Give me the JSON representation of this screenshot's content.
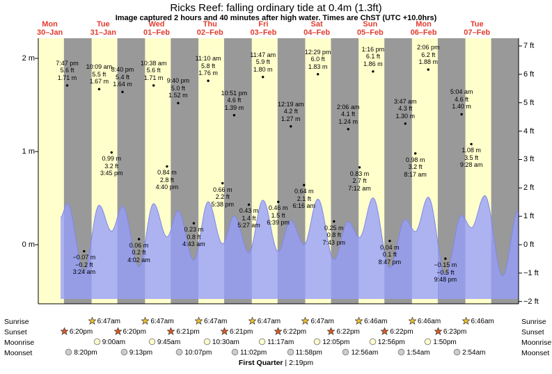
{
  "title": "Ricks Reef: falling ordinary tide at 0.4m (1.3ft)",
  "subtitle": "Image captured 2 hours and 40 minutes after high water. Times are ChST (UTC +10.0hrs)",
  "colors": {
    "plot_bg": "#ffffcc",
    "night_band": "#999999",
    "tide_fill": "#959efa",
    "tide_stroke": "#7f88e8",
    "day_label": "#e23b2e",
    "sunrise_star": "#f0c428",
    "sunset_star": "#e05a20",
    "moonrise_fill": "#ffffcc",
    "moonset_fill": "#cccccc"
  },
  "chart_data": {
    "type": "area",
    "title": "Ricks Reef: falling ordinary tide at 0.4m (1.3ft)",
    "xlabel": "day",
    "ylabel_left": "height (m)",
    "ylabel_right": "height (ft)",
    "x_domain_hours": [
      6.8,
      222.7
    ],
    "y_domain_m": [
      -0.63,
      2.22
    ],
    "grid": false,
    "days": [
      {
        "dow": "Mon",
        "date": "30–Jan"
      },
      {
        "dow": "Tue",
        "date": "31–Jan"
      },
      {
        "dow": "Wed",
        "date": "01–Feb"
      },
      {
        "dow": "Thu",
        "date": "02–Feb"
      },
      {
        "dow": "Fri",
        "date": "03–Feb"
      },
      {
        "dow": "Sat",
        "date": "04–Feb"
      },
      {
        "dow": "Sun",
        "date": "05–Feb"
      },
      {
        "dow": "Mon",
        "date": "06–Feb"
      },
      {
        "dow": "Tue",
        "date": "07–Feb"
      }
    ],
    "y_axis_left": [
      {
        "label": "2 m",
        "value": 2
      },
      {
        "label": "1 m",
        "value": 1
      },
      {
        "label": "0 m",
        "value": 0
      }
    ],
    "y_axis_right": [
      {
        "label": "7 ft",
        "value": 7
      },
      {
        "label": "6 ft",
        "value": 6
      },
      {
        "label": "5 ft",
        "value": 5
      },
      {
        "label": "4 ft",
        "value": 4
      },
      {
        "label": "3 ft",
        "value": 3
      },
      {
        "label": "2 ft",
        "value": 2
      },
      {
        "label": "1 ft",
        "value": 1
      },
      {
        "label": "0 ft",
        "value": 0
      },
      {
        "label": "−1 ft",
        "value": -1
      },
      {
        "label": "−2 ft",
        "value": -2
      }
    ],
    "night_bands": [
      [
        18.33,
        30.78
      ],
      [
        42.33,
        54.78
      ],
      [
        66.35,
        78.78
      ],
      [
        90.35,
        102.78
      ],
      [
        114.37,
        126.78
      ],
      [
        138.37,
        150.77
      ],
      [
        162.37,
        174.77
      ],
      [
        186.38,
        198.77
      ],
      [
        210.38,
        222.7
      ]
    ],
    "curve": [
      [
        16.8,
        1.35
      ],
      [
        19.783,
        1.71
      ],
      [
        27.4,
        -0.07
      ],
      [
        34.15,
        1.67
      ],
      [
        39.75,
        0.99
      ],
      [
        44.667,
        1.64
      ],
      [
        52.033,
        0.06
      ],
      [
        58.633,
        1.71
      ],
      [
        64.667,
        0.84
      ],
      [
        69.667,
        1.52
      ],
      [
        76.717,
        0.23
      ],
      [
        83.167,
        1.76
      ],
      [
        89.633,
        0.66
      ],
      [
        94.85,
        1.39
      ],
      [
        101.45,
        0.43
      ],
      [
        107.783,
        1.8
      ],
      [
        114.65,
        0.46
      ],
      [
        120.317,
        1.27
      ],
      [
        126.267,
        0.64
      ],
      [
        132.483,
        1.83
      ],
      [
        139.717,
        0.25
      ],
      [
        146.1,
        1.24
      ],
      [
        151.2,
        0.83
      ],
      [
        157.267,
        1.86
      ],
      [
        164.783,
        0.04
      ],
      [
        171.783,
        1.3
      ],
      [
        176.283,
        0.98
      ],
      [
        182.1,
        1.88
      ],
      [
        189.8,
        -0.15
      ],
      [
        197.067,
        1.4
      ],
      [
        201.467,
        1.08
      ],
      [
        207.5,
        1.92
      ],
      [
        215.5,
        -0.18
      ],
      [
        222.7,
        1.55
      ]
    ],
    "tide_events": [
      {
        "type": "high",
        "time": "7:47 pm",
        "ft": "5.6 ft",
        "m": "1.71 m",
        "hour": 19.783,
        "height_m": 1.71
      },
      {
        "type": "low",
        "time": "3:24 am",
        "ft": "−0.2 ft",
        "m": "−0.07 m",
        "hour": 27.4,
        "height_m": -0.07
      },
      {
        "type": "high",
        "time": "10:09 am",
        "ft": "5.5 ft",
        "m": "1.67 m",
        "hour": 34.15,
        "height_m": 1.67
      },
      {
        "type": "low",
        "time": "3:45 pm",
        "ft": "3.2 ft",
        "m": "0.99 m",
        "hour": 39.75,
        "height_m": 0.99
      },
      {
        "type": "high",
        "time": "8:40 pm",
        "ft": "5.4 ft",
        "m": "1.64 m",
        "hour": 44.667,
        "height_m": 1.64
      },
      {
        "type": "low",
        "time": "4:02 am",
        "ft": "0.2 ft",
        "m": "0.06 m",
        "hour": 52.033,
        "height_m": 0.06
      },
      {
        "type": "high",
        "time": "10:38 am",
        "ft": "5.6 ft",
        "m": "1.71 m",
        "hour": 58.633,
        "height_m": 1.71
      },
      {
        "type": "low",
        "time": "4:40 pm",
        "ft": "2.8 ft",
        "m": "0.84 m",
        "hour": 64.667,
        "height_m": 0.84
      },
      {
        "type": "high",
        "time": "9:40 pm",
        "ft": "5.0 ft",
        "m": "1.52 m",
        "hour": 69.667,
        "height_m": 1.52
      },
      {
        "type": "low",
        "time": "4:43 am",
        "ft": "0.8 ft",
        "m": "0.23 m",
        "hour": 76.717,
        "height_m": 0.23
      },
      {
        "type": "high",
        "time": "11:10 am",
        "ft": "5.8 ft",
        "m": "1.76 m",
        "hour": 83.167,
        "height_m": 1.76
      },
      {
        "type": "low",
        "time": "5:38 pm",
        "ft": "2.2 ft",
        "m": "0.66 m",
        "hour": 89.633,
        "height_m": 0.66
      },
      {
        "type": "high",
        "time": "10:51 pm",
        "ft": "4.6 ft",
        "m": "1.39 m",
        "hour": 94.85,
        "height_m": 1.39
      },
      {
        "type": "low",
        "time": "5:27 am",
        "ft": "1.4 ft",
        "m": "0.43 m",
        "hour": 101.45,
        "height_m": 0.43
      },
      {
        "type": "high",
        "time": "11:47 am",
        "ft": "5.9 ft",
        "m": "1.80 m",
        "hour": 107.783,
        "height_m": 1.8
      },
      {
        "type": "low",
        "time": "6:39 pm",
        "ft": "1.5 ft",
        "m": "0.46 m",
        "hour": 114.65,
        "height_m": 0.46
      },
      {
        "type": "high",
        "time": "12:19 am",
        "ft": "4.2 ft",
        "m": "1.27 m",
        "hour": 120.317,
        "height_m": 1.27
      },
      {
        "type": "low",
        "time": "6:16 am",
        "ft": "2.1 ft",
        "m": "0.64 m",
        "hour": 126.267,
        "height_m": 0.64
      },
      {
        "type": "high",
        "time": "12:29 pm",
        "ft": "6.0 ft",
        "m": "1.83 m",
        "hour": 132.483,
        "height_m": 1.83
      },
      {
        "type": "low",
        "time": "7:43 pm",
        "ft": "0.8 ft",
        "m": "0.25 m",
        "hour": 139.717,
        "height_m": 0.25
      },
      {
        "type": "high",
        "time": "2:06 am",
        "ft": "4.1 ft",
        "m": "1.24 m",
        "hour": 146.1,
        "height_m": 1.24
      },
      {
        "type": "low",
        "time": "7:12 am",
        "ft": "2.7 ft",
        "m": "0.83 m",
        "hour": 151.2,
        "height_m": 0.83
      },
      {
        "type": "high",
        "time": "1:16 pm",
        "ft": "6.1 ft",
        "m": "1.86 m",
        "hour": 157.267,
        "height_m": 1.86
      },
      {
        "type": "low",
        "time": "8:47 pm",
        "ft": "0.1 ft",
        "m": "0.04 m",
        "hour": 164.783,
        "height_m": 0.04
      },
      {
        "type": "high",
        "time": "3:47 am",
        "ft": "4.3 ft",
        "m": "1.30 m",
        "hour": 171.783,
        "height_m": 1.3
      },
      {
        "type": "low",
        "time": "8:17 am",
        "ft": "3.2 ft",
        "m": "0.98 m",
        "hour": 176.283,
        "height_m": 0.98
      },
      {
        "type": "high",
        "time": "2:06 pm",
        "ft": "6.2 ft",
        "m": "1.88 m",
        "hour": 182.1,
        "height_m": 1.88
      },
      {
        "type": "low",
        "time": "9:48 pm",
        "ft": "−0.5 ft",
        "m": "−0.15 m",
        "hour": 189.8,
        "height_m": -0.15
      },
      {
        "type": "high",
        "time": "5:04 am",
        "ft": "4.6 ft",
        "m": "1.40 m",
        "hour": 197.067,
        "height_m": 1.4
      },
      {
        "type": "low",
        "time": "9:28 am",
        "ft": "3.5 ft",
        "m": "1.08 m",
        "hour": 201.467,
        "height_m": 1.08
      }
    ]
  },
  "astro": {
    "rows": [
      {
        "label": "Sunrise",
        "icon": "sunrise-star",
        "events": [
          {
            "hour": 30.78,
            "time": "6:47am"
          },
          {
            "hour": 54.78,
            "time": "6:47am"
          },
          {
            "hour": 78.78,
            "time": "6:47am"
          },
          {
            "hour": 102.78,
            "time": "6:47am"
          },
          {
            "hour": 126.78,
            "time": "6:47am"
          },
          {
            "hour": 150.77,
            "time": "6:46am"
          },
          {
            "hour": 174.77,
            "time": "6:46am"
          },
          {
            "hour": 198.77,
            "time": "6:46am"
          }
        ]
      },
      {
        "label": "Sunset",
        "icon": "sunset-star",
        "events": [
          {
            "hour": 18.33,
            "time": "6:20pm"
          },
          {
            "hour": 42.33,
            "time": "6:20pm"
          },
          {
            "hour": 66.35,
            "time": "6:21pm"
          },
          {
            "hour": 90.35,
            "time": "6:21pm"
          },
          {
            "hour": 114.37,
            "time": "6:22pm"
          },
          {
            "hour": 138.37,
            "time": "6:22pm"
          },
          {
            "hour": 162.37,
            "time": "6:22pm"
          },
          {
            "hour": 186.38,
            "time": "6:23pm"
          }
        ]
      },
      {
        "label": "Moonrise",
        "icon": "moonrise-circle",
        "events": [
          {
            "hour": 33.0,
            "time": "9:00am"
          },
          {
            "hour": 57.75,
            "time": "9:45am"
          },
          {
            "hour": 82.5,
            "time": "10:30am"
          },
          {
            "hour": 107.28,
            "time": "11:17am"
          },
          {
            "hour": 132.08,
            "time": "12:05pm"
          },
          {
            "hour": 156.93,
            "time": "12:56pm"
          },
          {
            "hour": 181.83,
            "time": "1:50pm"
          }
        ]
      },
      {
        "label": "Moonset",
        "icon": "moonset-circle",
        "events": [
          {
            "hour": 20.33,
            "time": "8:20pm"
          },
          {
            "hour": 45.22,
            "time": "9:13pm"
          },
          {
            "hour": 70.12,
            "time": "10:07pm"
          },
          {
            "hour": 95.03,
            "time": "11:02pm"
          },
          {
            "hour": 119.97,
            "time": "11:58pm"
          },
          {
            "hour": 144.93,
            "time": "12:56am"
          },
          {
            "hour": 169.9,
            "time": "1:54am"
          },
          {
            "hour": 194.9,
            "time": "2:54am"
          }
        ]
      }
    ],
    "moon_phase": {
      "name": "First Quarter",
      "separator": "|",
      "time": "2:19pm"
    }
  }
}
